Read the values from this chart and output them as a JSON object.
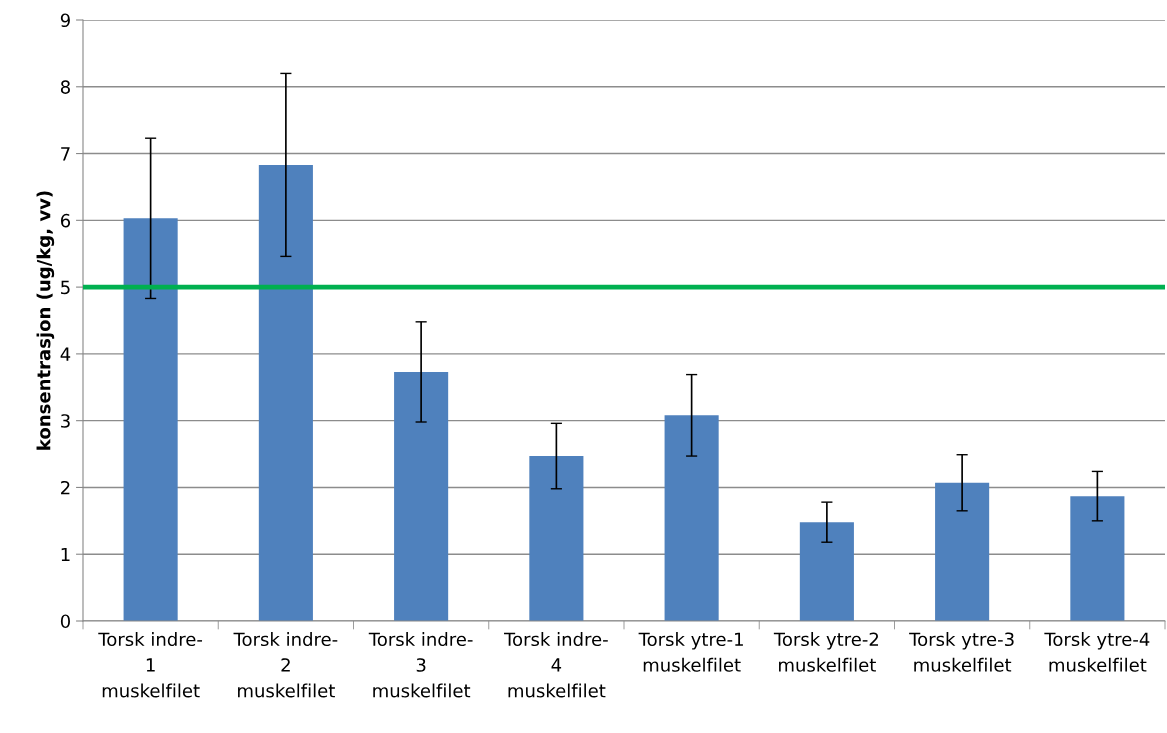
{
  "chart_data": {
    "type": "bar",
    "ylabel": "konsentrasjon (ug/kg, vv)",
    "categories": [
      "Torsk indre-\n1\nmuskelfilet",
      "Torsk indre-\n2\nmuskelfilet",
      "Torsk indre-\n3\nmuskelfilet",
      "Torsk indre-\n4\nmuskelfilet",
      "Torsk ytre-1\nmuskelfilet",
      "Torsk ytre-2\nmuskelfilet",
      "Torsk ytre-3\nmuskelfilet",
      "Torsk ytre-4\nmuskelfilet"
    ],
    "values": [
      6.03,
      6.83,
      3.73,
      2.47,
      3.08,
      1.48,
      2.07,
      1.87
    ],
    "errors": [
      1.2,
      1.37,
      0.75,
      0.49,
      0.61,
      0.3,
      0.42,
      0.37
    ],
    "color": "#4f81bd",
    "ylim": [
      0,
      9
    ],
    "yticks": [
      0,
      1,
      2,
      3,
      4,
      5,
      6,
      7,
      8,
      9
    ],
    "grid": "y",
    "ref_lines": [
      {
        "axis": "y",
        "value": 5,
        "color": "#00b050"
      }
    ]
  }
}
